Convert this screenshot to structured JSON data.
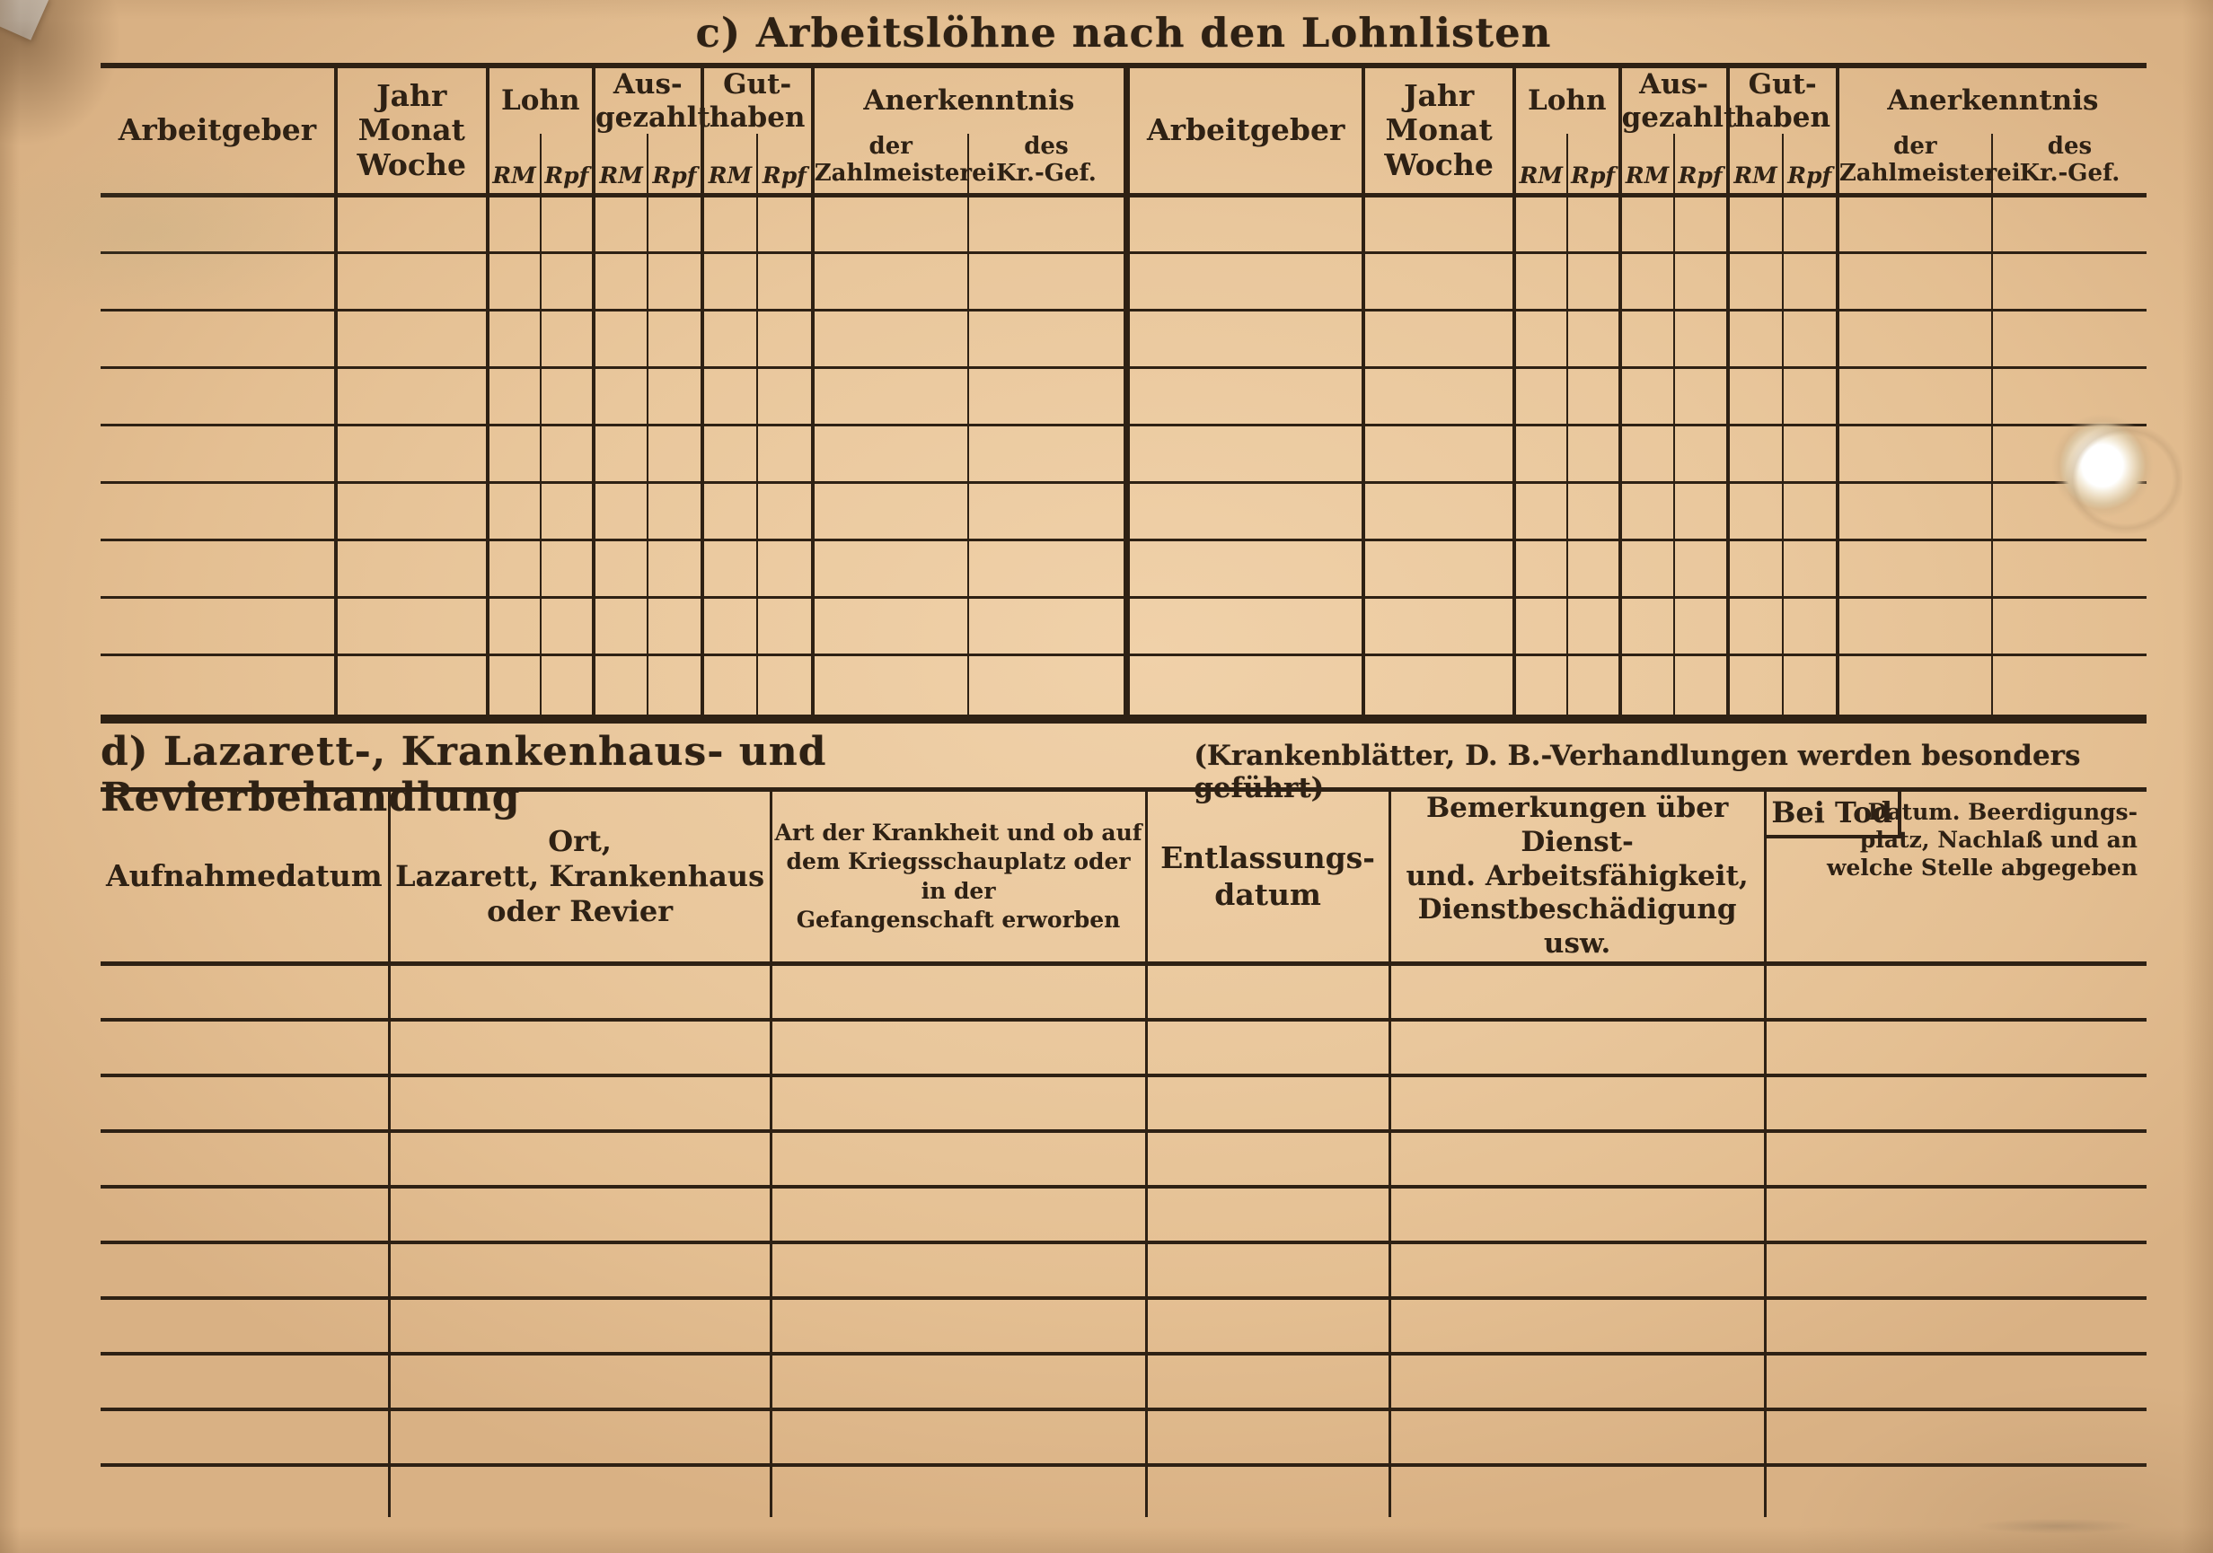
{
  "section_c": {
    "title": "c) Arbeitslöhne nach den Lohnlisten",
    "wage_table": {
      "col_arbeitgeber": "Arbeitgeber",
      "col_jahr_monat_woche": "Jahr\nMonat\nWoche",
      "col_lohn": "Lohn",
      "col_ausgezahlt": "Aus-\ngezahlt",
      "col_guthaben": "Gut-\nhaben",
      "col_anerkenntnis": "Anerkenntnis",
      "sub_rm": "RM",
      "sub_rpf": "Rpf",
      "sub_zahlmeisterei": "der\nZahlmeisterei",
      "sub_kr_gef": "des\nKr.-Gef."
    }
  },
  "section_d": {
    "title_main": "d) Lazarett-, Krankenhaus- und Revierbehandlung",
    "title_note": "(Krankenblätter, D. B.-Verhandlungen werden besonders geführt)",
    "treatment_table": {
      "col_aufnahmedatum": "Aufnahmedatum",
      "col_ort": "Ort,\nLazarett, Krankenhaus\noder Revier",
      "col_art_der_krankheit": "Art der Krankheit und ob auf\ndem Kriegsschauplatz oder in der\nGefangenschaft erworben",
      "col_entlassungsdatum": "Entlassungs-\ndatum",
      "col_bemerkungen": "Bemerkungen über Dienst-\nund. Arbeitsfähigkeit,\nDienstbeschädigung usw.",
      "col_bei_tod": "Bei Tod",
      "col_bei_tod_note_lines": [
        "Datum. Beerdigungs-",
        "platz, Nachlaß und an",
        "welche Stelle abgegeben"
      ]
    }
  }
}
